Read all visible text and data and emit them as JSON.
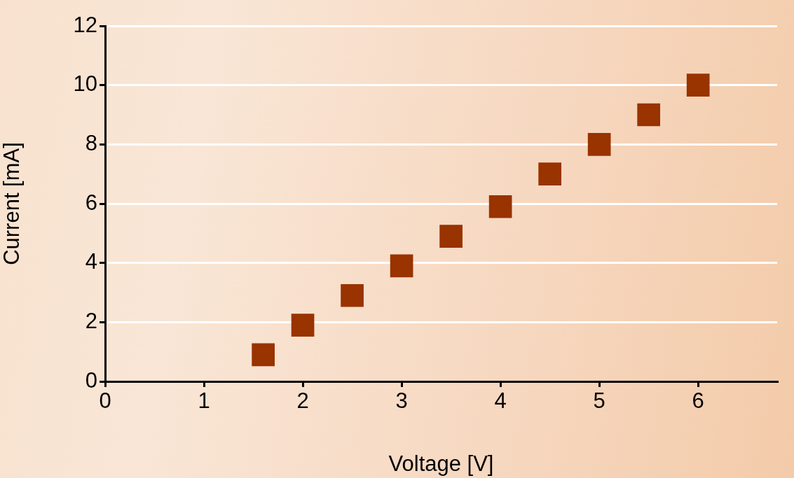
{
  "chart_data": {
    "type": "scatter",
    "xlabel": "Voltage [V]",
    "ylabel": "Current [mA]",
    "x": [
      1.6,
      2,
      2.5,
      3,
      3.5,
      4,
      4.5,
      5,
      5.5,
      6
    ],
    "series": [
      {
        "color": "#993300",
        "values": [
          0.9,
          1.9,
          2.9,
          3.9,
          4.9,
          5.9,
          7.0,
          8.0,
          9.0,
          10.0
        ]
      }
    ],
    "xlim": [
      0,
      6.8
    ],
    "xticks": [
      0,
      1,
      2,
      3,
      4,
      5,
      6
    ],
    "ylim": [
      0,
      12
    ],
    "yticks": [
      0,
      2,
      4,
      6,
      8,
      10,
      12
    ],
    "grid": "y",
    "marker": "square",
    "legend": false
  }
}
